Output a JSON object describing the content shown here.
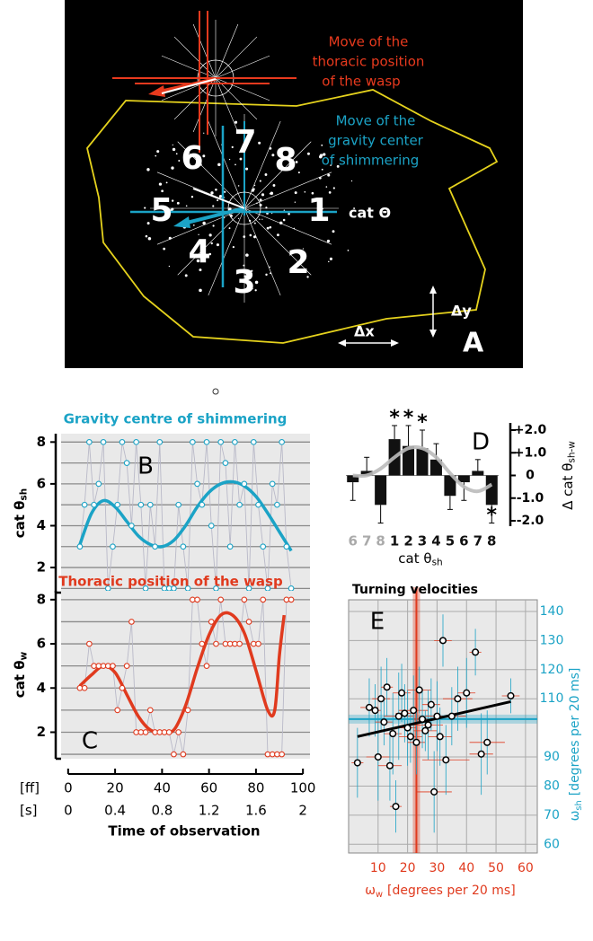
{
  "panel_a": {
    "label": "A",
    "wasp_text": [
      "Move of the",
      "thoracic position",
      "of the wasp"
    ],
    "shimmer_text": [
      "Move of the",
      "gravity center",
      "of shimmering"
    ],
    "sectors": [
      "1",
      "2",
      "3",
      "4",
      "5",
      "6",
      "7",
      "8"
    ],
    "axis_label": "cat Θ",
    "dy": "Δy",
    "dx": "Δx"
  },
  "chart_data": [
    {
      "type": "line",
      "panel_label": "B",
      "title": "Gravity centre of shimmering",
      "ylabel": {
        "symbol": "cat θ",
        "sub": "sh"
      },
      "color": "#1ba3c6",
      "x": [
        5,
        7,
        9,
        11,
        13,
        15,
        17,
        19,
        21,
        23,
        25,
        27,
        29,
        31,
        33,
        35,
        37,
        39,
        41,
        43,
        45,
        47,
        49,
        51,
        53,
        55,
        57,
        59,
        61,
        63,
        65,
        67,
        69,
        71,
        73,
        75,
        77,
        79,
        81,
        83,
        85,
        87,
        89,
        91,
        93,
        95
      ],
      "values": [
        3,
        5,
        8,
        5,
        6,
        8,
        1,
        3,
        5,
        8,
        7,
        4,
        8,
        5,
        1,
        5,
        3,
        8,
        1,
        1,
        1,
        5,
        3,
        1,
        8,
        6,
        5,
        8,
        4,
        1,
        8,
        7,
        3,
        8,
        5,
        6,
        1,
        8,
        5,
        3,
        1,
        6,
        5,
        8,
        3,
        1
      ],
      "fit": {
        "x": [
          5,
          10,
          15,
          20,
          25,
          30,
          35,
          40,
          45,
          50,
          55,
          60,
          65,
          70,
          75,
          80,
          85,
          90,
          95
        ],
        "y": [
          3.1,
          4.6,
          5.2,
          4.9,
          4.2,
          3.5,
          3.1,
          3.0,
          3.3,
          4.0,
          4.9,
          5.6,
          6.0,
          6.1,
          5.9,
          5.4,
          4.6,
          3.7,
          2.8
        ]
      },
      "xlim": [
        -3,
        103
      ],
      "ylim": [
        0.8,
        8.4
      ],
      "yticks": [
        2,
        4,
        6,
        8
      ],
      "ygrid": [
        1,
        2,
        3,
        4,
        5,
        6,
        7,
        8
      ]
    },
    {
      "type": "line",
      "panel_label": "C",
      "title": "Thoracic position of the wasp",
      "ylabel": {
        "symbol": "cat θ",
        "sub": "w"
      },
      "color": "#e03a1e",
      "x": [
        5,
        7,
        9,
        11,
        13,
        15,
        17,
        19,
        21,
        23,
        25,
        27,
        29,
        31,
        33,
        35,
        37,
        39,
        41,
        43,
        45,
        47,
        49,
        51,
        53,
        55,
        57,
        59,
        61,
        63,
        65,
        67,
        69,
        71,
        73,
        75,
        77,
        79,
        81,
        83,
        85,
        87,
        89,
        91,
        93,
        95
      ],
      "values": [
        4,
        4,
        6,
        5,
        5,
        5,
        5,
        5,
        3,
        4,
        5,
        7,
        2,
        2,
        2,
        3,
        2,
        2,
        2,
        2,
        1,
        2,
        1,
        3,
        8,
        8,
        6,
        5,
        7,
        6,
        8,
        6,
        6,
        6,
        6,
        8,
        7,
        6,
        6,
        8,
        1,
        1,
        1,
        1,
        8,
        8
      ],
      "fit": {
        "x": [
          5,
          10,
          15,
          20,
          25,
          30,
          35,
          40,
          45,
          50,
          55,
          60,
          65,
          70,
          75,
          80,
          85,
          88,
          90,
          92
        ],
        "y": [
          4.1,
          4.6,
          5.0,
          4.7,
          3.7,
          2.7,
          2.1,
          2.0,
          2.1,
          3.2,
          4.9,
          6.4,
          7.3,
          7.3,
          6.5,
          4.8,
          3.0,
          3.0,
          5.5,
          7.3
        ]
      },
      "xlim": [
        -3,
        103
      ],
      "ylim": [
        0.8,
        8.4
      ],
      "yticks": [
        2,
        4,
        6,
        8
      ],
      "ygrid": [
        1,
        2,
        3,
        4,
        5,
        6,
        7,
        8
      ],
      "xticks": [
        0,
        20,
        40,
        60,
        80,
        100
      ],
      "x2lim": [
        -0.06,
        2.06
      ],
      "x2ticks": [
        0,
        0.4,
        0.8,
        1.2,
        1.6,
        2
      ],
      "xtick_rows": [
        "[ff]",
        "[s]"
      ],
      "xlabel": "Time of observation"
    },
    {
      "type": "bar",
      "panel_label": "D",
      "categories": [
        "6",
        "7",
        "8",
        "1",
        "2",
        "3",
        "4",
        "5",
        "6",
        "7",
        "8"
      ],
      "category_colors": [
        "#aaaaaa",
        "#aaaaaa",
        "#aaaaaa",
        "#111111",
        "#111111",
        "#111111",
        "#111111",
        "#111111",
        "#111111",
        "#111111",
        "#111111"
      ],
      "values": [
        -0.3,
        0.2,
        -1.3,
        1.6,
        1.3,
        1.2,
        0.7,
        -0.9,
        -0.3,
        0.2,
        -1.3
      ],
      "errors": [
        0.8,
        0.6,
        0.8,
        0.6,
        0.9,
        0.8,
        0.7,
        0.6,
        0.8,
        0.5,
        0.8
      ],
      "significance": [
        null,
        null,
        null,
        "*",
        "*",
        "*",
        null,
        null,
        null,
        null,
        "*"
      ],
      "fit": {
        "x": [
          0,
          1,
          2,
          3,
          4,
          5,
          6,
          7,
          8,
          9,
          10
        ],
        "y": [
          0,
          0,
          0.3,
          0.8,
          1.2,
          1.2,
          0.8,
          0.1,
          -0.5,
          -0.7,
          -0.4
        ]
      },
      "color": "#111111",
      "fit_color": "#bbbbbb",
      "ylim": [
        -2,
        2
      ],
      "yticks": [
        {
          "value": 2,
          "label": "+2.0"
        },
        {
          "value": 1,
          "label": "+1.0"
        },
        0,
        {
          "value": -1,
          "label": "-1.0"
        },
        {
          "value": -2,
          "label": "-2.0"
        }
      ],
      "xlabel": {
        "symbol": "cat θ",
        "sub": "sh"
      },
      "ylabel": {
        "symbol": "Δ cat θ",
        "sub": "sh-w"
      }
    },
    {
      "type": "scatter",
      "panel_label": "E",
      "title": "Turning velocities",
      "x": [
        3,
        7,
        9,
        10,
        11,
        12,
        13,
        14,
        15,
        16,
        17,
        18,
        19,
        20,
        21,
        22,
        23,
        24,
        25,
        26,
        27,
        28,
        29,
        30,
        31,
        32,
        33,
        35,
        37,
        40,
        43,
        45,
        47,
        55
      ],
      "y": [
        88,
        107,
        106,
        90,
        110,
        102,
        114,
        87,
        98,
        73,
        104,
        112,
        105,
        100,
        97,
        106,
        95,
        113,
        103,
        99,
        101,
        108,
        78,
        104,
        97,
        130,
        89,
        104,
        110,
        112,
        126,
        91,
        95,
        111
      ],
      "xerr": [
        2,
        3,
        2,
        4,
        3,
        3,
        2,
        4,
        3,
        2,
        5,
        3,
        3,
        3,
        4,
        5,
        3,
        4,
        3,
        4,
        5,
        3,
        6,
        4,
        4,
        3,
        8,
        5,
        5,
        3,
        2,
        4,
        6,
        3
      ],
      "yerr": [
        12,
        10,
        9,
        15,
        11,
        8,
        10,
        12,
        14,
        9,
        15,
        10,
        10,
        13,
        9,
        12,
        11,
        8,
        10,
        7,
        12,
        9,
        14,
        12,
        10,
        9,
        12,
        10,
        11,
        12,
        8,
        14,
        11,
        6
      ],
      "trend": {
        "x": [
          3,
          55
        ],
        "y": [
          97,
          109
        ]
      },
      "mean_x": 23,
      "mean_y": 103,
      "x_color": "#e03a1e",
      "y_color": "#1ba3c6",
      "grid": true,
      "xlim": [
        0,
        64
      ],
      "ylim": [
        57,
        144
      ],
      "xticks": [
        10,
        20,
        30,
        40,
        50,
        60
      ],
      "yticks": [
        60,
        70,
        80,
        90,
        110,
        120,
        130,
        140
      ],
      "xlabel": {
        "symbol": "ω",
        "sub": "w",
        "text": "[degrees per  20 ms]"
      },
      "ylabel": {
        "symbol": "ω",
        "sub": "sh",
        "text": "[degrees per  20 ms]"
      }
    }
  ]
}
